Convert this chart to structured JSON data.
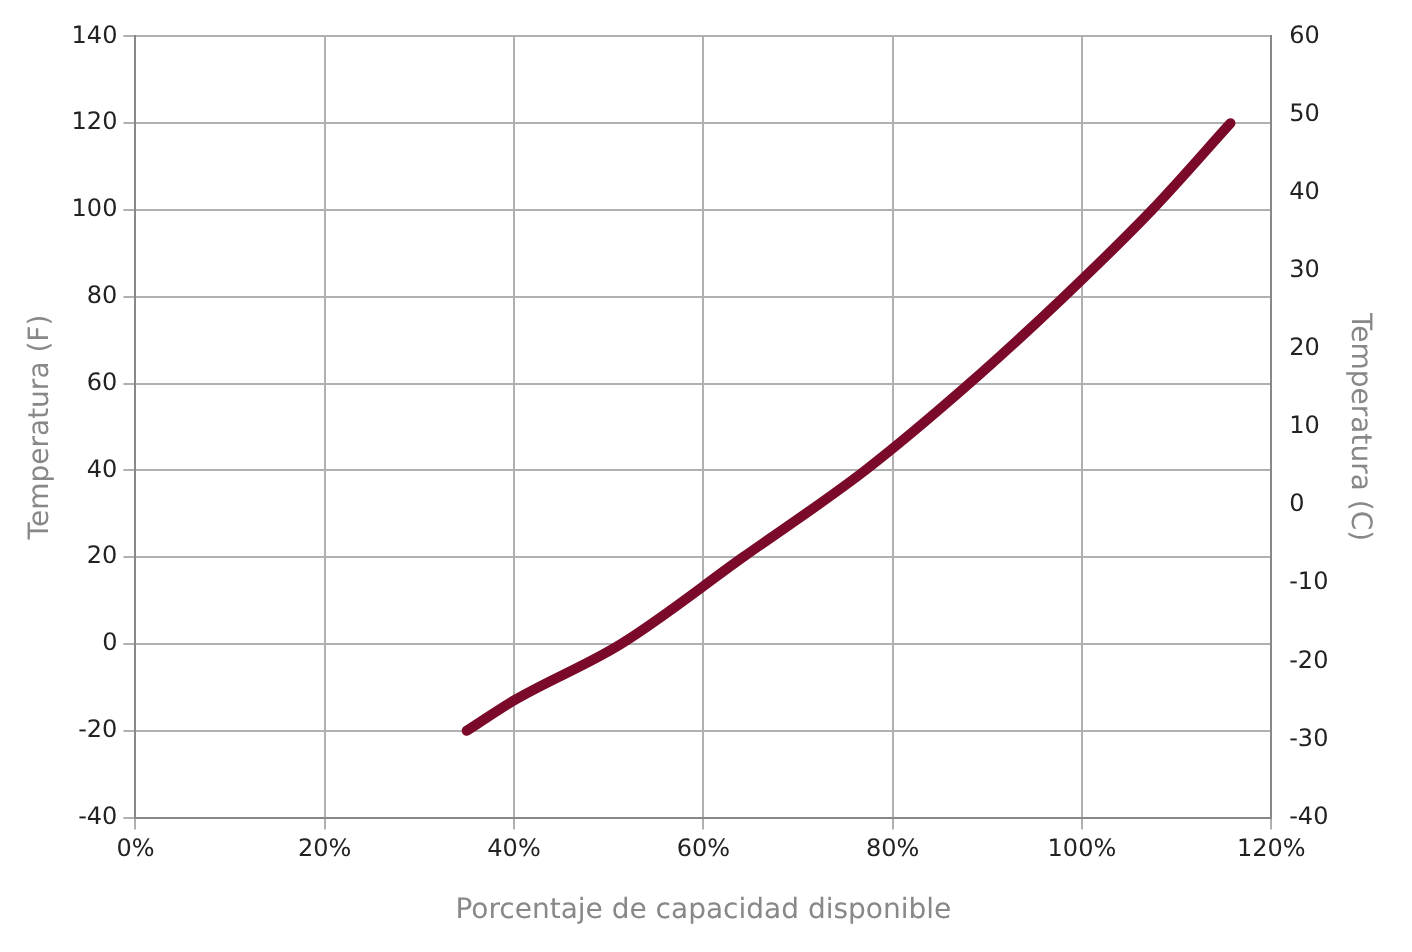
{
  "chart_data": {
    "type": "line",
    "xlabel": "Porcentaje de capacidad disponible",
    "ylabel": "Temperatura (F)",
    "y2label": "Temperatura (C)",
    "x": [
      35,
      40,
      51.3,
      64.2,
      77.1,
      88.1,
      98.1,
      107.4,
      115.7
    ],
    "series": [
      {
        "color": "#7b0a2a",
        "values": [
          -20,
          -13,
          0,
          20,
          40,
          60,
          80,
          100,
          120
        ]
      }
    ],
    "xlim": [
      0,
      120
    ],
    "xticks": [
      {
        "value": 0,
        "label": "0%"
      },
      {
        "value": 20,
        "label": "20%"
      },
      {
        "value": 40,
        "label": "40%"
      },
      {
        "value": 60,
        "label": "60%"
      },
      {
        "value": 80,
        "label": "80%"
      },
      {
        "value": 100,
        "label": "100%"
      },
      {
        "value": 120,
        "label": "120%"
      }
    ],
    "ylim": [
      -40,
      140
    ],
    "yticks": [
      -40,
      -20,
      0,
      20,
      40,
      60,
      80,
      100,
      120,
      140
    ],
    "y2lim": [
      -40,
      60
    ],
    "y2ticks": [
      -40,
      -30,
      -20,
      -10,
      0,
      10,
      20,
      30,
      40,
      50,
      60
    ],
    "grid": true,
    "legend": false,
    "marker": "none",
    "line_style": "solid"
  }
}
